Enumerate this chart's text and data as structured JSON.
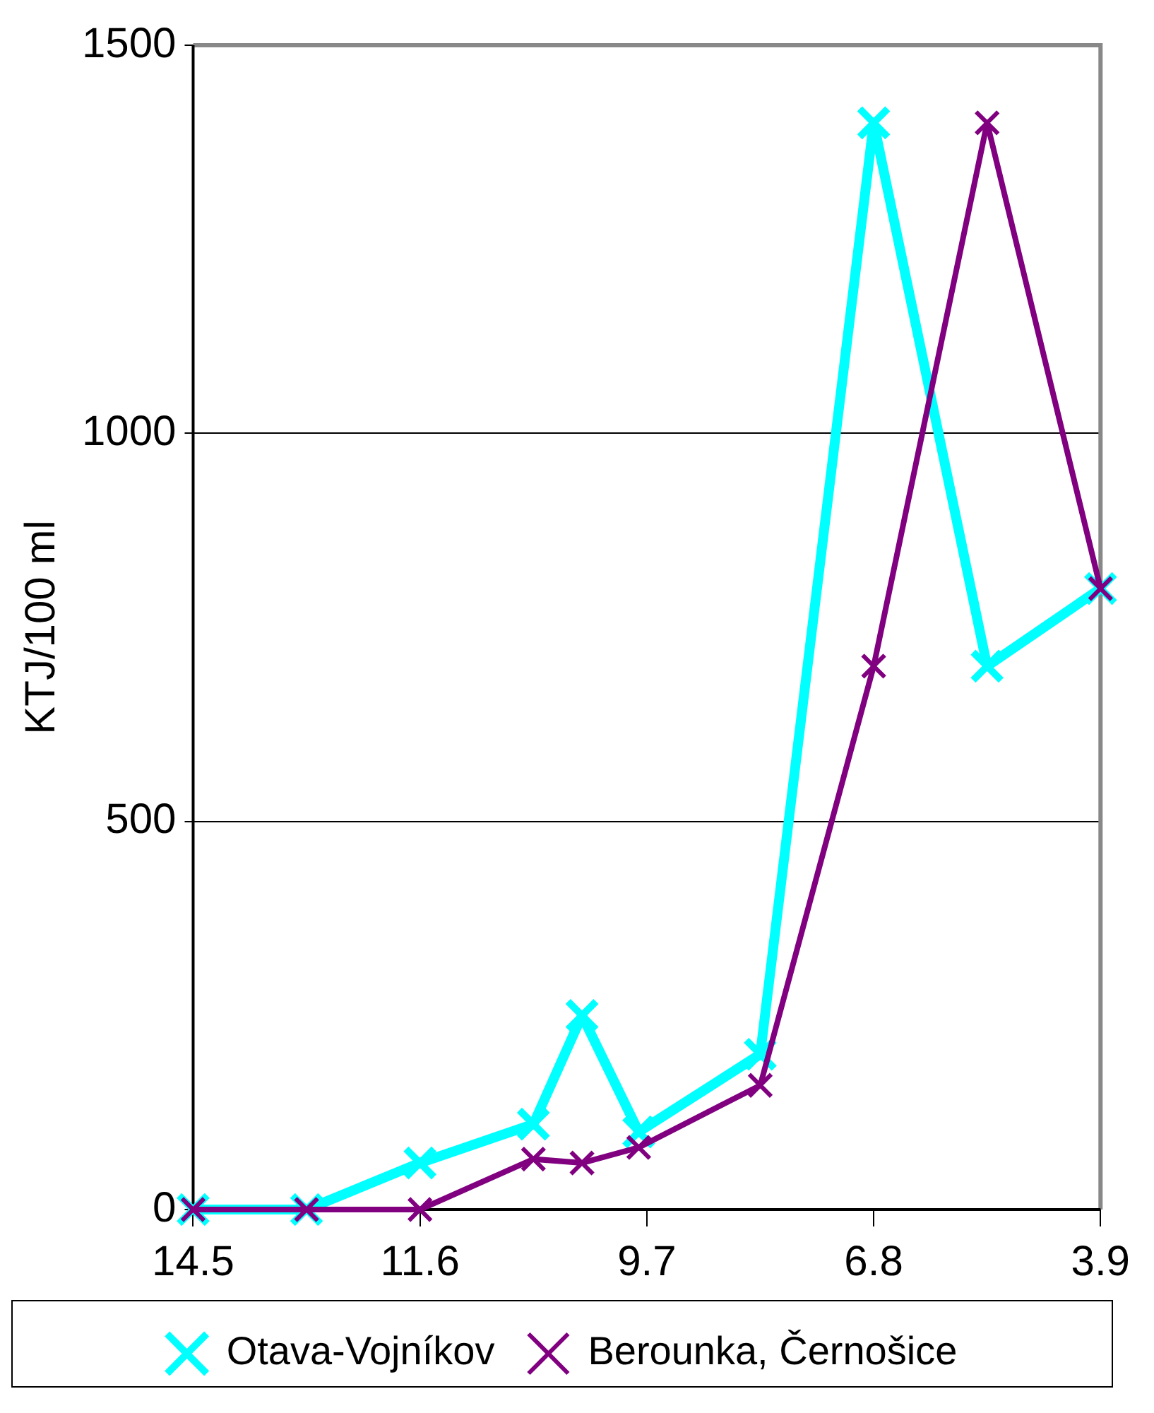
{
  "chart_data": {
    "type": "line",
    "ylabel": "KTJ/100 ml",
    "x": [
      "--05-14",
      "--05-28",
      "--06-11",
      "--06-25",
      "--07-01",
      "--07-08",
      "--07-23",
      "--08-06",
      "--08-20",
      "--09-03"
    ],
    "series": [
      {
        "name": "Otava-Vojníkov",
        "color": "#00ffff",
        "marker": "cross",
        "values": [
          0,
          0,
          60,
          110,
          250,
          100,
          200,
          1400,
          700,
          800
        ]
      },
      {
        "name": "Berounka, Černošice",
        "color": "#800080",
        "marker": "cross",
        "values": [
          0,
          0,
          0,
          65,
          60,
          80,
          160,
          700,
          1400,
          800
        ]
      }
    ],
    "xlim": [
      "--05-14",
      "--09-03"
    ],
    "xticks": [
      {
        "value": "--05-14",
        "label": "14.5"
      },
      {
        "value": "--06-11",
        "label": "11.6"
      },
      {
        "value": "--07-09",
        "label": "9.7"
      },
      {
        "value": "--08-06",
        "label": "6.8"
      },
      {
        "value": "--09-03",
        "label": "3.9"
      }
    ],
    "ylim": [
      0,
      1500
    ],
    "yticks": [
      0,
      500,
      1000,
      1500
    ],
    "grid": "y",
    "legend": "bottom",
    "line_style": "solid"
  }
}
